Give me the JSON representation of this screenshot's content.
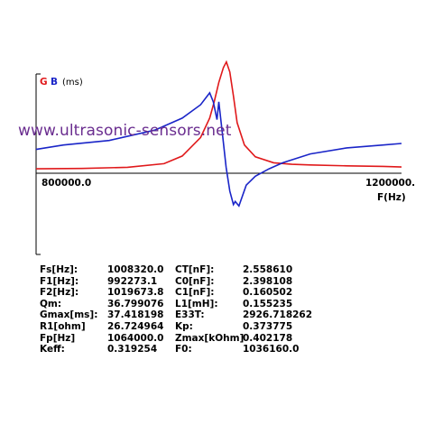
{
  "colors": {
    "G": "#e0191b",
    "B": "#1a25c8"
  },
  "chart_data": {
    "type": "line",
    "legend": {
      "g": "G",
      "b": "B",
      "unit": "(ms)"
    },
    "xlabel": "F(Hz)",
    "x_tick_labels": [
      "800000.0",
      "1200000."
    ],
    "xlim": [
      800000,
      1200000
    ],
    "series": [
      {
        "name": "G",
        "x": [
          800000,
          850000,
          900000,
          940000,
          960000,
          980000,
          990000,
          995000,
          1000000,
          1005000,
          1008320,
          1012000,
          1016000,
          1020000,
          1028000,
          1040000,
          1060000,
          1080000,
          1100000,
          1140000,
          1180000,
          1200000
        ],
        "y": [
          1.5,
          1.6,
          2.0,
          3.2,
          5.8,
          12,
          18.5,
          24,
          30.5,
          35.5,
          37.4,
          34,
          26,
          17,
          9.5,
          5.5,
          3.5,
          3,
          2.8,
          2.5,
          2.3,
          2.1
        ]
      },
      {
        "name": "B",
        "x": [
          800000,
          830000,
          880000,
          930000,
          960000,
          980000,
          990000,
          994000,
          998000,
          1000000,
          1004000,
          1008000,
          1012000,
          1016000,
          1018000,
          1022000,
          1030000,
          1040000,
          1055000,
          1070000,
          1100000,
          1140000,
          1180000,
          1200000
        ],
        "y": [
          8,
          9.5,
          11,
          14.5,
          18.5,
          23,
          27,
          24,
          18,
          24,
          13,
          2,
          -6,
          -10.5,
          -9.5,
          -11,
          -4,
          -1,
          1.5,
          3.5,
          6.5,
          8.5,
          9.5,
          10
        ]
      }
    ]
  },
  "watermark": "www.ultrasonic-sensors.net",
  "params": [
    {
      "k1": "Fs[Hz]:",
      "v1": "1008320.0",
      "k2": "CT[nF]:",
      "v2": "2.558610"
    },
    {
      "k1": "F1[Hz]:",
      "v1": "992273.1",
      "k2": "C0[nF]:",
      "v2": "2.398108"
    },
    {
      "k1": "F2[Hz]:",
      "v1": "1019673.8",
      "k2": "C1[nF]:",
      "v2": "0.160502"
    },
    {
      "k1": "Qm:",
      "v1": "36.799076",
      "k2": "L1[mH]:",
      "v2": "0.155235"
    },
    {
      "k1": "Gmax[ms]:",
      "v1": "37.418198",
      "k2": "E33T:",
      "v2": "2926.718262"
    },
    {
      "k1": "R1[ohm]",
      "v1": "26.724964",
      "k2": "Kp:",
      "v2": "0.373775"
    },
    {
      "k1": "Fp[Hz]",
      "v1": "1064000.0",
      "k2": "Zmax[kOhm]",
      "v2": "0.402178"
    },
    {
      "k1": "Keff:",
      "v1": "0.319254",
      "k2": "F0:",
      "v2": "1036160.0"
    }
  ]
}
